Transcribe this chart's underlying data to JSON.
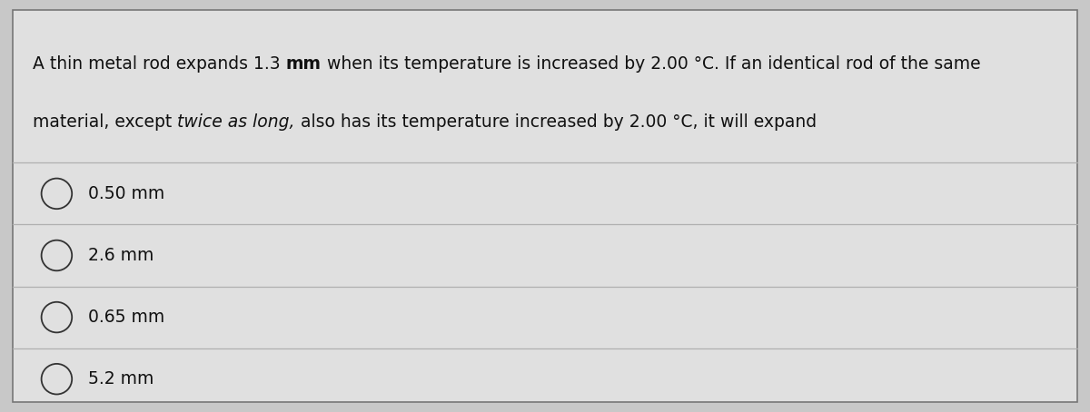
{
  "background_color": "#c8c8c8",
  "panel_color": "#e0e0e0",
  "border_color": "#777777",
  "divider_color": "#b0b0b0",
  "text_color": "#111111",
  "q_line1_prefix": "A thin metal rod expands 1.3 ",
  "q_line1_bold": "mm",
  "q_line1_suffix": " when its temperature is increased by 2.00 °C. If an identical rod of the same",
  "q_line2_prefix": "material, except ",
  "q_line2_italic": "twice as long,",
  "q_line2_suffix": " also has its temperature increased by 2.00 °C, it will expand",
  "options": [
    "0.50 mm",
    "2.6 mm",
    "0.65 mm",
    "5.2 mm"
  ],
  "question_fontsize": 13.5,
  "option_fontsize": 13.5
}
